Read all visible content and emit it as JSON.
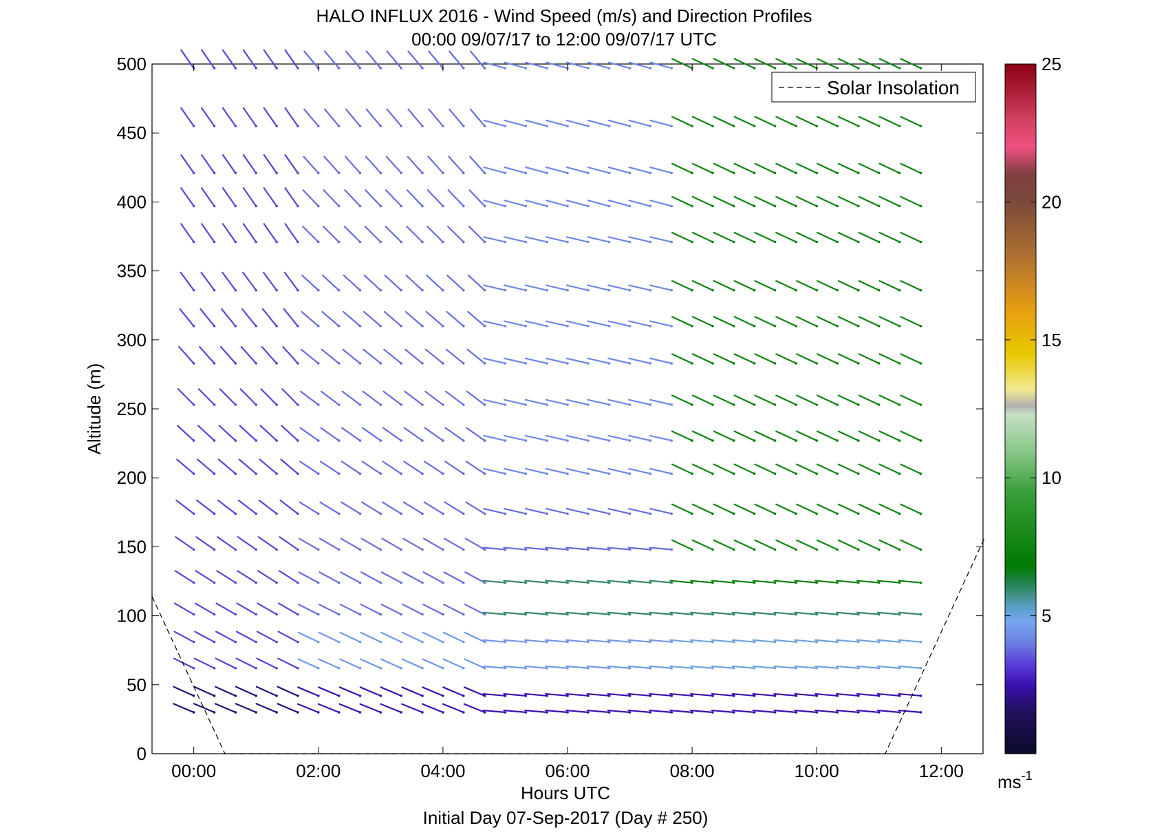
{
  "chart_data": {
    "type": "wind-barb-profile",
    "title": "HALO INFLUX 2016 - Wind Speed (m/s) and Direction Profiles",
    "subtitle": "00:00 09/07/17 to 12:00 09/07/17  UTC",
    "xlabel": "Hours UTC",
    "ylabel": "Altitude (m)",
    "footer": "Initial Day 07-Sep-2017 (Day # 250)",
    "xlim": [
      -0.67,
      12.67
    ],
    "ylim": [
      0,
      500
    ],
    "x_ticks": [
      0,
      2,
      4,
      6,
      8,
      10,
      12
    ],
    "x_tick_labels": [
      "00:00",
      "02:00",
      "04:00",
      "06:00",
      "08:00",
      "10:00",
      "12:00"
    ],
    "y_ticks": [
      0,
      50,
      100,
      150,
      200,
      250,
      300,
      350,
      400,
      450,
      500
    ],
    "y_tick_labels": [
      "0",
      "50",
      "100",
      "150",
      "200",
      "250",
      "300",
      "350",
      "400",
      "450",
      "500"
    ],
    "legend": {
      "label": "Solar Insolation",
      "placement": "top-right",
      "style": "dashed"
    },
    "colorbar": {
      "range": [
        0,
        25
      ],
      "ticks": [
        5,
        10,
        15,
        20,
        25
      ],
      "tick_labels": [
        "5",
        "10",
        "15",
        "20",
        "25"
      ],
      "unit_base": "ms",
      "unit_exp": "-1",
      "stops": [
        [
          0,
          "#0a0a2a"
        ],
        [
          1.5,
          "#22105a"
        ],
        [
          2.5,
          "#3a10b0"
        ],
        [
          3.2,
          "#5a3ad8"
        ],
        [
          4.0,
          "#6a7ee0"
        ],
        [
          4.8,
          "#78a6f0"
        ],
        [
          5.3,
          "#5aa0c8"
        ],
        [
          5.8,
          "#3e9080"
        ],
        [
          6.3,
          "#1a8040"
        ],
        [
          6.8,
          "#007a00"
        ],
        [
          8.0,
          "#1a8a1a"
        ],
        [
          9.5,
          "#3a9e3a"
        ],
        [
          11.0,
          "#8cc88c"
        ],
        [
          12.3,
          "#c4e0c4"
        ],
        [
          12.6,
          "#b0b0b0"
        ],
        [
          13.2,
          "#f0e890"
        ],
        [
          14.5,
          "#e8c800"
        ],
        [
          16.0,
          "#e8a010"
        ],
        [
          18.0,
          "#b07030"
        ],
        [
          20.0,
          "#7a4a3a"
        ],
        [
          21.0,
          "#804040"
        ],
        [
          22.0,
          "#f05080"
        ],
        [
          23.0,
          "#d04060"
        ],
        [
          25.0,
          "#8a0010"
        ]
      ]
    },
    "solar_insolation_line": {
      "x": [
        -0.67,
        0.5,
        11.1,
        12.7
      ],
      "y": [
        114,
        0,
        0,
        157
      ]
    },
    "altitudes": [
      30,
      42,
      62,
      81,
      101,
      124,
      148,
      174,
      203,
      227,
      253,
      283,
      310,
      336,
      371,
      397,
      421,
      455,
      497
    ],
    "hours": [
      0,
      0.33,
      0.67,
      1,
      1.33,
      1.67,
      2,
      2.33,
      2.67,
      3,
      3.33,
      3.67,
      4,
      4.33,
      4.67,
      5,
      5.33,
      5.67,
      6,
      6.33,
      6.67,
      7,
      7.33,
      7.67,
      8,
      8.33,
      8.67,
      9,
      9.33,
      9.67,
      10,
      10.33,
      10.67,
      11,
      11.33,
      11.67
    ],
    "wind_direction_deg": {
      "low_0_4h": 290,
      "low_6_12h": 275,
      "mid_6_12h": 283,
      "high_0_2h": 325,
      "high_8_12h": 295
    },
    "wind_speed_ms": {
      "low_levels_below_60m": 2.5,
      "level_80m": 4.5,
      "level_100m_after_5h": 6.0,
      "mid_levels_before_8h": 3.8,
      "all_levels_after_8h": 7.5
    }
  }
}
